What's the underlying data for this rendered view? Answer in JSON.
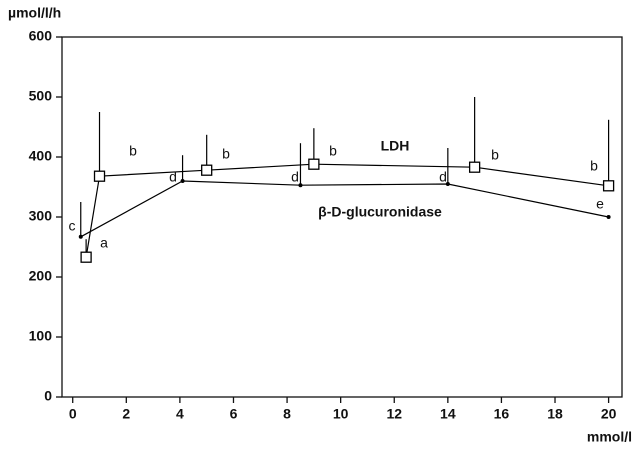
{
  "chart_data": {
    "type": "line",
    "y_label": "µmol/l/h",
    "x_label": "mmol/l",
    "xlim": [
      -0.4,
      20.5
    ],
    "ylim": [
      0,
      600
    ],
    "xticks": [
      0,
      2,
      4,
      6,
      8,
      10,
      12,
      14,
      16,
      18,
      20
    ],
    "yticks": [
      0,
      100,
      200,
      300,
      400,
      500,
      600
    ],
    "series": [
      {
        "name": "LDH",
        "color": "#000000",
        "marker": "square",
        "x": [
          0.5,
          1,
          5,
          9,
          15,
          20
        ],
        "values": [
          233,
          368,
          378,
          388,
          383,
          352
        ],
        "errors": [
          30,
          107,
          59,
          60,
          117,
          110
        ]
      },
      {
        "name": "β-D-glucuronidase",
        "color": "#000000",
        "marker": "dot",
        "x": [
          0.3,
          4.1,
          8.5,
          14,
          20
        ],
        "values": [
          267,
          360,
          353,
          355,
          300
        ],
        "errors": [
          58,
          43,
          70,
          60,
          0
        ]
      }
    ],
    "annotations": [
      "c",
      "a",
      "b",
      "d",
      "b",
      "d",
      "b",
      "d",
      "b",
      "b",
      "e"
    ]
  }
}
